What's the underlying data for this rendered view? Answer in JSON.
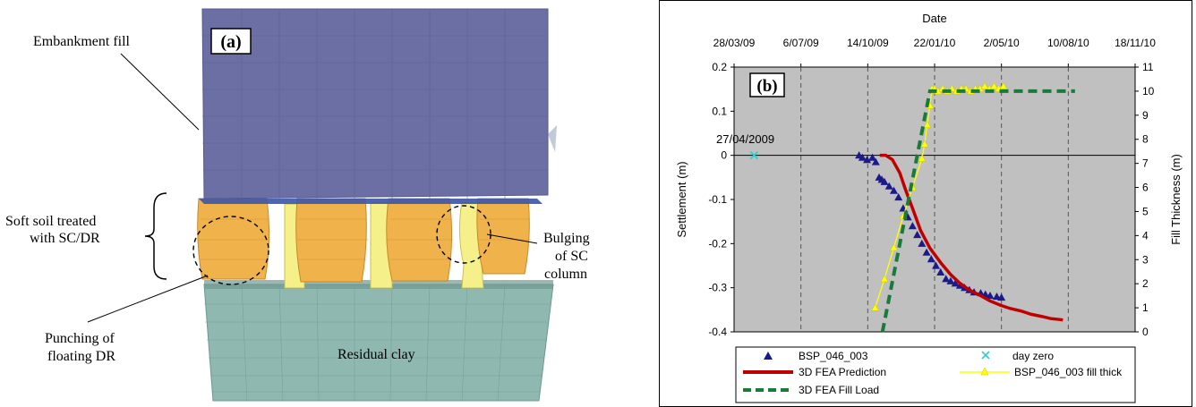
{
  "panel_a": {
    "tag": "(a)",
    "labels": {
      "embankment": "Embankment fill",
      "soft_soil_line1": "Soft soil treated",
      "soft_soil_line2": "with SC/DR",
      "punching_line1": "Punching of",
      "punching_line2": "floating DR",
      "residual": "Residual clay",
      "bulging_line1": "Bulging",
      "bulging_line2": "of SC",
      "bulging_line3": "column"
    },
    "colors": {
      "embankment": "#6b6fa3",
      "column_orange": "#f0b24a",
      "column_yellow": "#f5f08a",
      "clay": "#8fb8b0"
    }
  },
  "chart_data": {
    "type": "line",
    "tag": "(b)",
    "top_axis_title": "Date",
    "top_ticks": [
      "28/03/09",
      "6/07/09",
      "14/10/09",
      "22/01/10",
      "2/05/10",
      "10/08/10",
      "18/11/10"
    ],
    "ylabel_left": "Settlement (m)",
    "ylabel_right": "Fill Thickness (m)",
    "ylim_left": [
      -0.4,
      0.2
    ],
    "yticks_left": [
      "0.2",
      "0.1",
      "0",
      "-0.1",
      "-0.2",
      "-0.3",
      "-0.4"
    ],
    "ylim_right": [
      0,
      11
    ],
    "yticks_right": [
      "11",
      "10",
      "9",
      "8",
      "7",
      "6",
      "5",
      "4",
      "3",
      "2",
      "1",
      "0"
    ],
    "xlim": [
      "28/03/09",
      "18/11/10"
    ],
    "annotation": "27/04/2009",
    "background": "#c0c0c0",
    "grid": "vertical dashed",
    "legend_position": "bottom",
    "series": [
      {
        "name": "BSP_046_003",
        "axis": "left",
        "kind": "scatter",
        "marker": "triangle",
        "color": "#1a1a8c",
        "x": [
          "2009-10-01",
          "2009-10-06",
          "2009-10-13",
          "2009-10-21",
          "2009-10-26",
          "2009-10-31",
          "2009-11-04",
          "2009-11-08",
          "2009-11-15",
          "2009-11-22",
          "2009-11-29",
          "2009-12-06",
          "2009-12-13",
          "2009-12-20",
          "2009-12-27",
          "2010-01-03",
          "2010-01-10",
          "2010-01-17",
          "2010-01-24",
          "2010-01-31",
          "2010-02-08",
          "2010-02-15",
          "2010-02-22",
          "2010-03-01",
          "2010-03-08",
          "2010-03-15",
          "2010-03-22",
          "2010-04-01",
          "2010-04-08",
          "2010-04-15",
          "2010-04-25",
          "2010-05-02"
        ],
        "y": [
          0.0,
          -0.005,
          -0.01,
          -0.005,
          -0.015,
          -0.05,
          -0.055,
          -0.06,
          -0.07,
          -0.08,
          -0.095,
          -0.12,
          -0.14,
          -0.16,
          -0.18,
          -0.2,
          -0.22,
          -0.235,
          -0.25,
          -0.265,
          -0.28,
          -0.285,
          -0.29,
          -0.295,
          -0.3,
          -0.305,
          -0.31,
          -0.312,
          -0.315,
          -0.318,
          -0.32,
          -0.322
        ]
      },
      {
        "name": "day zero",
        "axis": "left",
        "kind": "scatter",
        "marker": "x",
        "color": "#33cccc",
        "x": [
          "2009-04-27"
        ],
        "y": [
          0
        ]
      },
      {
        "name": "3D FEA Prediction",
        "axis": "left",
        "kind": "line",
        "color": "#c00000",
        "x": [
          "2009-11-01",
          "2009-11-10",
          "2009-11-20",
          "2009-12-01",
          "2009-12-10",
          "2009-12-20",
          "2010-01-01",
          "2010-01-15",
          "2010-02-01",
          "2010-02-15",
          "2010-03-01",
          "2010-03-15",
          "2010-04-01",
          "2010-04-15",
          "2010-05-01",
          "2010-05-15",
          "2010-06-01",
          "2010-06-15",
          "2010-07-01",
          "2010-07-15",
          "2010-07-28",
          "2010-08-02"
        ],
        "y": [
          0.0,
          0.0,
          -0.01,
          -0.04,
          -0.08,
          -0.12,
          -0.17,
          -0.21,
          -0.245,
          -0.27,
          -0.29,
          -0.305,
          -0.318,
          -0.33,
          -0.34,
          -0.347,
          -0.353,
          -0.36,
          -0.365,
          -0.37,
          -0.372,
          -0.373
        ]
      },
      {
        "name": "BSP_046_003 fill thick",
        "axis": "right",
        "kind": "line",
        "marker": "triangle",
        "color": "#ffff00",
        "x": [
          "2009-10-25",
          "2009-11-08",
          "2009-11-22",
          "2009-12-06",
          "2009-12-20",
          "2010-01-03",
          "2010-01-07",
          "2010-01-11",
          "2010-01-15",
          "2010-01-18",
          "2010-01-22",
          "2010-01-27",
          "2010-02-03",
          "2010-02-10",
          "2010-02-17",
          "2010-02-24",
          "2010-03-03",
          "2010-03-10",
          "2010-03-17",
          "2010-03-24",
          "2010-03-31",
          "2010-04-07",
          "2010-04-14",
          "2010-04-21",
          "2010-04-28",
          "2010-05-05"
        ],
        "y": [
          1.0,
          2.2,
          3.5,
          4.8,
          6.0,
          7.2,
          7.8,
          8.6,
          9.4,
          10.1,
          10.1,
          10.0,
          10.1,
          10.0,
          10.1,
          10.0,
          10.1,
          10.1,
          10.0,
          10.1,
          10.1,
          10.2,
          10.1,
          10.2,
          10.1,
          10.2
        ]
      },
      {
        "name": "3D FEA Fill Load",
        "axis": "right",
        "kind": "line",
        "dashed": true,
        "color": "#1a7a3a",
        "x": [
          "2009-11-05",
          "2010-01-15",
          "2010-08-20"
        ],
        "y": [
          0,
          10,
          10
        ]
      }
    ],
    "legend": [
      "BSP_046_003",
      "day zero",
      "3D FEA Prediction",
      "BSP_046_003 fill thick",
      "3D FEA Fill Load"
    ]
  }
}
